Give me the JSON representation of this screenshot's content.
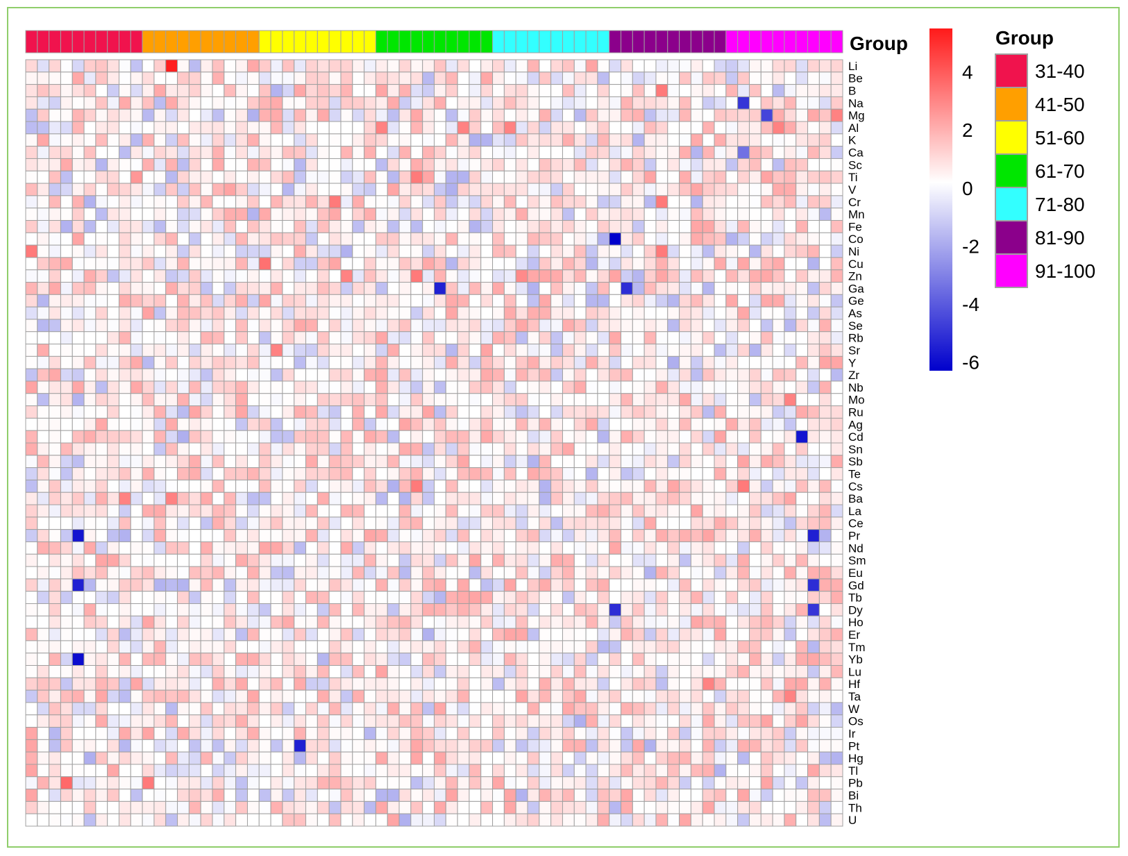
{
  "colors": {
    "low": "#0000cc",
    "mid": "#ffffff",
    "high": "#ff1a1a",
    "cell_border": "#a0a0a0",
    "frame": "#8fce6a"
  },
  "chart_data": {
    "type": "heatmap",
    "title": "",
    "group_bar_label": "Group",
    "rows": [
      "Li",
      "Be",
      "B",
      "Na",
      "Mg",
      "Al",
      "K",
      "Ca",
      "Sc",
      "Ti",
      "V",
      "Cr",
      "Mn",
      "Fe",
      "Co",
      "Ni",
      "Cu",
      "Zn",
      "Ga",
      "Ge",
      "As",
      "Se",
      "Rb",
      "Sr",
      "Y",
      "Zr",
      "Nb",
      "Mo",
      "Ru",
      "Ag",
      "Cd",
      "Sn",
      "Sb",
      "Te",
      "Cs",
      "Ba",
      "La",
      "Ce",
      "Pr",
      "Nd",
      "Sm",
      "Eu",
      "Gd",
      "Tb",
      "Dy",
      "Ho",
      "Er",
      "Tm",
      "Yb",
      "Lu",
      "Hf",
      "Ta",
      "W",
      "Os",
      "Ir",
      "Pt",
      "Hg",
      "Tl",
      "Pb",
      "Bi",
      "Th",
      "U"
    ],
    "column_groups": [
      {
        "name": "31-40",
        "color": "#f0134d",
        "count": 10
      },
      {
        "name": "41-50",
        "color": "#ff9f00",
        "count": 10
      },
      {
        "name": "51-60",
        "color": "#ffff00",
        "count": 10
      },
      {
        "name": "61-70",
        "color": "#00e600",
        "count": 10
      },
      {
        "name": "71-80",
        "color": "#33ffff",
        "count": 10
      },
      {
        "name": "81-90",
        "color": "#8b008b",
        "count": 10
      },
      {
        "name": "91-100",
        "color": "#ff00ff",
        "count": 10
      }
    ],
    "color_scale": {
      "min": -6.3,
      "max": 5.5,
      "ticks": [
        4,
        2,
        0,
        -2,
        -4,
        -6
      ],
      "tick_labels": [
        "4",
        "2",
        "0",
        "-2",
        "-4",
        "-6"
      ]
    },
    "group_legend": {
      "title": "Group",
      "items": [
        "31-40",
        "41-50",
        "51-60",
        "61-70",
        "71-80",
        "81-90",
        "91-100"
      ]
    },
    "highlights": [
      {
        "row": "Li",
        "col": 12,
        "value": 5.4
      },
      {
        "row": "B",
        "col": 54,
        "value": 3.2
      },
      {
        "row": "Na",
        "col": 61,
        "value": -5.0
      },
      {
        "row": "Mg",
        "col": 63,
        "value": -4.6
      },
      {
        "row": "Mg",
        "col": 69,
        "value": 3.0
      },
      {
        "row": "Al",
        "col": 30,
        "value": 3.0
      },
      {
        "row": "Al",
        "col": 37,
        "value": 3.0
      },
      {
        "row": "Al",
        "col": 41,
        "value": 3.0
      },
      {
        "row": "Al",
        "col": 64,
        "value": 3.0
      },
      {
        "row": "Ca",
        "col": 61,
        "value": -3.5
      },
      {
        "row": "Ti",
        "col": 33,
        "value": 3.2
      },
      {
        "row": "Ti",
        "col": 9,
        "value": 2.5
      },
      {
        "row": "Cr",
        "col": 26,
        "value": 3.2
      },
      {
        "row": "Cr",
        "col": 54,
        "value": 3.2
      },
      {
        "row": "Co",
        "col": 50,
        "value": -6.3
      },
      {
        "row": "Ni",
        "col": 0,
        "value": 3.2
      },
      {
        "row": "Ni",
        "col": 54,
        "value": 3.2
      },
      {
        "row": "Cu",
        "col": 20,
        "value": 3.4
      },
      {
        "row": "Zn",
        "col": 27,
        "value": 3.0
      },
      {
        "row": "Zn",
        "col": 33,
        "value": 3.2
      },
      {
        "row": "Zn",
        "col": 42,
        "value": 2.8
      },
      {
        "row": "Ga",
        "col": 35,
        "value": -5.5
      },
      {
        "row": "Ga",
        "col": 51,
        "value": -5.2
      },
      {
        "row": "Sr",
        "col": 21,
        "value": 3.0
      },
      {
        "row": "Mo",
        "col": 65,
        "value": 3.0
      },
      {
        "row": "Cd",
        "col": 66,
        "value": -5.8
      },
      {
        "row": "Cs",
        "col": 33,
        "value": 3.2
      },
      {
        "row": "Cs",
        "col": 61,
        "value": 3.2
      },
      {
        "row": "Ba",
        "col": 8,
        "value": 3.0
      },
      {
        "row": "Ba",
        "col": 12,
        "value": 3.0
      },
      {
        "row": "Pr",
        "col": 4,
        "value": -5.8
      },
      {
        "row": "Pr",
        "col": 67,
        "value": -5.5
      },
      {
        "row": "Gd",
        "col": 4,
        "value": -5.5
      },
      {
        "row": "Gd",
        "col": 67,
        "value": -5.2
      },
      {
        "row": "Dy",
        "col": 50,
        "value": -5.2
      },
      {
        "row": "Dy",
        "col": 67,
        "value": -5.0
      },
      {
        "row": "Yb",
        "col": 4,
        "value": -6.0
      },
      {
        "row": "Pt",
        "col": 23,
        "value": -5.5
      },
      {
        "row": "Pb",
        "col": 3,
        "value": 3.6
      },
      {
        "row": "Pb",
        "col": 10,
        "value": 3.2
      },
      {
        "row": "Ta",
        "col": 65,
        "value": 3.0
      },
      {
        "row": "Hf",
        "col": 58,
        "value": 3.0
      }
    ]
  }
}
